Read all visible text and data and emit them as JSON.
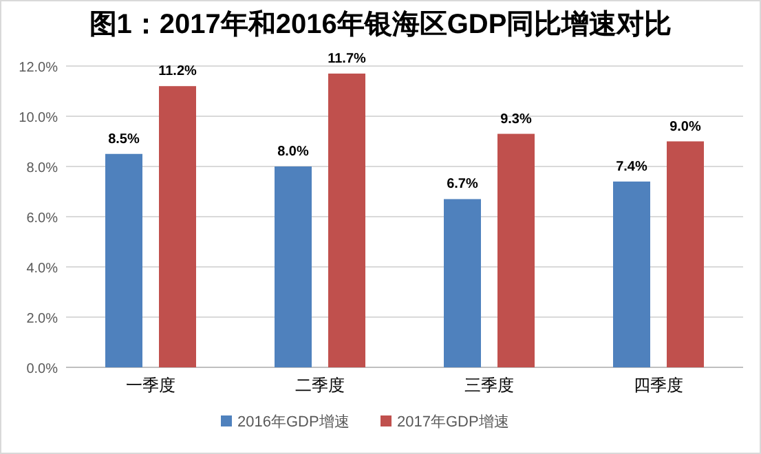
{
  "chart_data": {
    "type": "bar",
    "title": "图1：2017年和2016年银海区GDP同比增速对比",
    "categories": [
      "一季度",
      "二季度",
      "三季度",
      "四季度"
    ],
    "series": [
      {
        "name": "2016年GDP增速",
        "color": "#4f81bd",
        "values": [
          8.5,
          8.0,
          6.7,
          7.4
        ],
        "value_labels": [
          "8.5%",
          "8.0%",
          "6.7%",
          "7.4%"
        ]
      },
      {
        "name": "2017年GDP增速",
        "color": "#c0504d",
        "values": [
          11.2,
          11.7,
          9.3,
          9.0
        ],
        "value_labels": [
          "11.2%",
          "11.7%",
          "9.3%",
          "9.0%"
        ]
      }
    ],
    "ylim": [
      0,
      12
    ],
    "yticks": [
      {
        "value": 0,
        "label": "0.0%"
      },
      {
        "value": 2,
        "label": "2.0%"
      },
      {
        "value": 4,
        "label": "4.0%"
      },
      {
        "value": 6,
        "label": "6.0%"
      },
      {
        "value": 8,
        "label": "8.0%"
      },
      {
        "value": 10,
        "label": "10.0%"
      },
      {
        "value": 12,
        "label": "12.0%"
      }
    ],
    "grid": "y",
    "legend": "bottom"
  }
}
